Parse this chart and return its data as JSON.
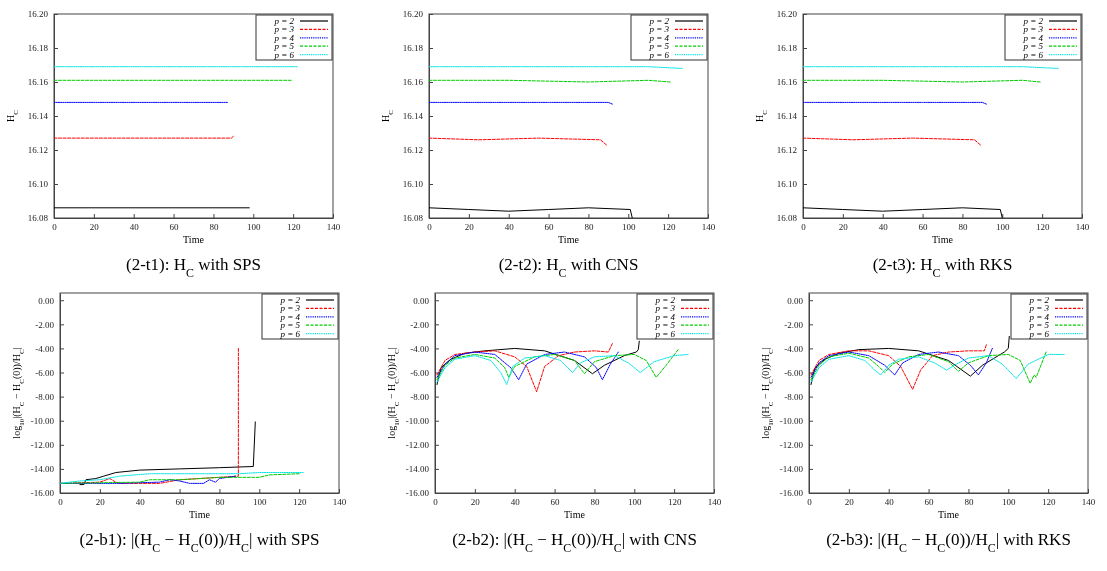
{
  "chart_data": [
    {
      "type": "line",
      "title": "(2-t1): H$_{C}$ with SPS",
      "xlabel": "Time",
      "ylabel": "H$_{C}$",
      "xlim": [
        0,
        140
      ],
      "xticks": [
        0,
        20,
        40,
        60,
        80,
        100,
        120,
        140
      ],
      "ylim": [
        16.08,
        16.2
      ],
      "yticks": [
        {
          "value": 16.08,
          "label": "16.08"
        },
        {
          "value": 16.1,
          "label": "16.10"
        },
        {
          "value": 16.12,
          "label": "16.12"
        },
        {
          "value": 16.14,
          "label": "16.14"
        },
        {
          "value": 16.16,
          "label": "16.16"
        },
        {
          "value": 16.18,
          "label": "16.18"
        },
        {
          "value": 16.2,
          "label": "16.20"
        }
      ],
      "legend": "top right",
      "grid": false,
      "series": [
        {
          "name": "p = 2",
          "color": "#000000",
          "line_style": "solid",
          "x": [
            0,
            98
          ],
          "values": [
            16.086,
            16.086
          ]
        },
        {
          "name": "p = 3",
          "color": "#ff0000",
          "line_style": "dashed",
          "x": [
            0,
            89,
            90
          ],
          "values": [
            16.127,
            16.127,
            16.128
          ]
        },
        {
          "name": "p = 4",
          "color": "#0000ff",
          "line_style": "dotted",
          "x": [
            0,
            87
          ],
          "values": [
            16.148,
            16.148
          ]
        },
        {
          "name": "p = 5",
          "color": "#00cc00",
          "line_style": "dashed",
          "x": [
            0,
            119
          ],
          "values": [
            16.161,
            16.161
          ]
        },
        {
          "name": "p = 6",
          "color": "#00e5e5",
          "line_style": "dotted",
          "x": [
            0,
            122
          ],
          "values": [
            16.169,
            16.169
          ]
        }
      ]
    },
    {
      "type": "line",
      "title": "(2-t2): H$_{C}$ with CNS",
      "xlabel": "Time",
      "ylabel": "H$_{C}$",
      "xlim": [
        0,
        140
      ],
      "xticks": [
        0,
        20,
        40,
        60,
        80,
        100,
        120,
        140
      ],
      "ylim": [
        16.08,
        16.2
      ],
      "yticks": [
        {
          "value": 16.08,
          "label": "16.08"
        },
        {
          "value": 16.1,
          "label": "16.10"
        },
        {
          "value": 16.12,
          "label": "16.12"
        },
        {
          "value": 16.14,
          "label": "16.14"
        },
        {
          "value": 16.16,
          "label": "16.16"
        },
        {
          "value": 16.18,
          "label": "16.18"
        },
        {
          "value": 16.2,
          "label": "16.20"
        }
      ],
      "legend": "top right",
      "grid": false,
      "series": [
        {
          "name": "p = 2",
          "color": "#000000",
          "line_style": "solid",
          "x": [
            0,
            20,
            40,
            60,
            80,
            101,
            102
          ],
          "values": [
            16.086,
            16.085,
            16.084,
            16.085,
            16.086,
            16.085,
            16.08
          ]
        },
        {
          "name": "p = 3",
          "color": "#ff0000",
          "line_style": "dashed",
          "x": [
            0,
            25,
            55,
            86,
            89
          ],
          "values": [
            16.127,
            16.126,
            16.127,
            16.126,
            16.123
          ]
        },
        {
          "name": "p = 4",
          "color": "#0000ff",
          "line_style": "dotted",
          "x": [
            0,
            30,
            60,
            90,
            92
          ],
          "values": [
            16.148,
            16.148,
            16.148,
            16.148,
            16.147
          ]
        },
        {
          "name": "p = 5",
          "color": "#00cc00",
          "line_style": "dashed",
          "x": [
            0,
            40,
            80,
            110,
            121
          ],
          "values": [
            16.161,
            16.161,
            16.16,
            16.161,
            16.16
          ]
        },
        {
          "name": "p = 6",
          "color": "#00e5e5",
          "line_style": "dotted",
          "x": [
            0,
            60,
            110,
            127
          ],
          "values": [
            16.169,
            16.169,
            16.169,
            16.168
          ]
        }
      ]
    },
    {
      "type": "line",
      "title": "(2-t3): H$_{C}$ with RKS",
      "xlabel": "Time",
      "ylabel": "H$_{C}$",
      "xlim": [
        0,
        140
      ],
      "xticks": [
        0,
        20,
        40,
        60,
        80,
        100,
        120,
        140
      ],
      "ylim": [
        16.08,
        16.2
      ],
      "yticks": [
        {
          "value": 16.08,
          "label": "16.08"
        },
        {
          "value": 16.1,
          "label": "16.10"
        },
        {
          "value": 16.12,
          "label": "16.12"
        },
        {
          "value": 16.14,
          "label": "16.14"
        },
        {
          "value": 16.16,
          "label": "16.16"
        },
        {
          "value": 16.18,
          "label": "16.18"
        },
        {
          "value": 16.2,
          "label": "16.20"
        }
      ],
      "legend": "top right",
      "grid": false,
      "series": [
        {
          "name": "p = 2",
          "color": "#000000",
          "line_style": "solid",
          "x": [
            0,
            20,
            40,
            60,
            80,
            99,
            100
          ],
          "values": [
            16.086,
            16.085,
            16.084,
            16.085,
            16.086,
            16.085,
            16.08
          ]
        },
        {
          "name": "p = 3",
          "color": "#ff0000",
          "line_style": "dashed",
          "x": [
            0,
            25,
            55,
            86,
            89
          ],
          "values": [
            16.127,
            16.126,
            16.127,
            16.126,
            16.123
          ]
        },
        {
          "name": "p = 4",
          "color": "#0000ff",
          "line_style": "dotted",
          "x": [
            0,
            30,
            60,
            90,
            92
          ],
          "values": [
            16.148,
            16.148,
            16.148,
            16.148,
            16.147
          ]
        },
        {
          "name": "p = 5",
          "color": "#00cc00",
          "line_style": "dashed",
          "x": [
            0,
            40,
            80,
            110,
            119
          ],
          "values": [
            16.161,
            16.161,
            16.16,
            16.161,
            16.16
          ]
        },
        {
          "name": "p = 6",
          "color": "#00e5e5",
          "line_style": "dotted",
          "x": [
            0,
            60,
            110,
            128
          ],
          "values": [
            16.169,
            16.169,
            16.169,
            16.168
          ]
        }
      ]
    },
    {
      "type": "line",
      "title": "(2-b1): |(H$_{C}$ − H$_{C}$(0))/H$_{C}$| with SPS",
      "xlabel": "Time",
      "ylabel": "log$_{10}$|(H$_{C}$ − H$_{C}$(0))/H$_{C}$|",
      "xlim": [
        0,
        140
      ],
      "xticks": [
        0,
        20,
        40,
        60,
        80,
        100,
        120,
        140
      ],
      "ylim": [
        -16,
        0.6
      ],
      "yticks": [
        {
          "value": -16,
          "label": "-16.00"
        },
        {
          "value": -14,
          "label": "-14.00"
        },
        {
          "value": -12,
          "label": "-12.00"
        },
        {
          "value": -10,
          "label": "-10.00"
        },
        {
          "value": -8,
          "label": "-8.00"
        },
        {
          "value": -6,
          "label": "-6.00"
        },
        {
          "value": -4,
          "label": "-4.00"
        },
        {
          "value": -2,
          "label": "-2.00"
        },
        {
          "value": 0,
          "label": "0.00"
        }
      ],
      "legend": "top right",
      "grid": false,
      "series": [
        {
          "name": "p = 2",
          "color": "#000000",
          "line_style": "solid",
          "x": [
            10,
            12,
            13,
            18,
            22,
            28,
            40,
            60,
            80,
            97,
            98
          ],
          "values": [
            -15.3,
            -15.3,
            -14.9,
            -14.8,
            -14.6,
            -14.3,
            -14.1,
            -14.0,
            -13.9,
            -13.8,
            -10.1
          ]
        },
        {
          "name": "p = 3",
          "color": "#ff0000",
          "line_style": "dashed",
          "x": [
            0,
            20,
            25,
            28,
            30,
            50,
            60,
            80,
            89.5,
            89.5
          ],
          "values": [
            -15.2,
            -15.1,
            -14.8,
            -15.1,
            -15.2,
            -15.2,
            -14.9,
            -14.7,
            -14.6,
            -4.0
          ]
        },
        {
          "name": "p = 4",
          "color": "#0000ff",
          "line_style": "dotted",
          "x": [
            0,
            30,
            50,
            55,
            60,
            65,
            72,
            75,
            78,
            80,
            88
          ],
          "values": [
            -15.2,
            -15.2,
            -15.1,
            -14.9,
            -15.0,
            -15.2,
            -15.2,
            -14.9,
            -15.1,
            -14.8,
            -14.6
          ]
        },
        {
          "name": "p = 5",
          "color": "#00cc00",
          "line_style": "dashed",
          "x": [
            0,
            40,
            45,
            60,
            80,
            100,
            105,
            120
          ],
          "values": [
            -15.2,
            -15.1,
            -14.9,
            -14.9,
            -14.7,
            -14.7,
            -14.5,
            -14.4
          ]
        },
        {
          "name": "p = 6",
          "color": "#00e5e5",
          "line_style": "dotted",
          "x": [
            0,
            10,
            20,
            30,
            45,
            70,
            90,
            100,
            122
          ],
          "values": [
            -15.2,
            -15.0,
            -14.9,
            -14.6,
            -14.4,
            -14.4,
            -14.4,
            -14.3,
            -14.3
          ]
        }
      ]
    },
    {
      "type": "line",
      "title": "(2-b2): |(H$_{C}$ − H$_{C}$(0))/H$_{C}$| with CNS",
      "xlabel": "Time",
      "ylabel": "log$_{10}$|(H$_{C}$ − H$_{C}$(0))/H$_{C}$|",
      "xlim": [
        0,
        140
      ],
      "xticks": [
        0,
        20,
        40,
        60,
        80,
        100,
        120,
        140
      ],
      "ylim": [
        -16,
        0.6
      ],
      "yticks": [
        {
          "value": -16,
          "label": "-16.00"
        },
        {
          "value": -14,
          "label": "-14.00"
        },
        {
          "value": -12,
          "label": "-12.00"
        },
        {
          "value": -10,
          "label": "-10.00"
        },
        {
          "value": -8,
          "label": "-8.00"
        },
        {
          "value": -6,
          "label": "-6.00"
        },
        {
          "value": -4,
          "label": "-4.00"
        },
        {
          "value": -2,
          "label": "-2.00"
        },
        {
          "value": 0,
          "label": "0.00"
        }
      ],
      "legend": "top right",
      "grid": false,
      "series": [
        {
          "name": "p = 2",
          "color": "#000000",
          "line_style": "solid",
          "x": [
            1,
            3,
            8,
            15,
            25,
            40,
            55,
            70,
            79,
            85,
            95,
            101,
            102,
            102.5
          ],
          "values": [
            -7.0,
            -5.6,
            -4.9,
            -4.4,
            -4.2,
            -4.0,
            -4.2,
            -5.0,
            -6.1,
            -5.4,
            -4.6,
            -4.3,
            -4.1,
            -3.4
          ]
        },
        {
          "name": "p = 3",
          "color": "#ff0000",
          "line_style": "dashed",
          "x": [
            1,
            5,
            10,
            20,
            30,
            40,
            46,
            51,
            55,
            62,
            70,
            80,
            87,
            89
          ],
          "values": [
            -6.2,
            -5.0,
            -4.5,
            -4.3,
            -4.2,
            -4.7,
            -5.5,
            -7.6,
            -5.5,
            -4.6,
            -4.3,
            -4.2,
            -4.3,
            -3.6
          ]
        },
        {
          "name": "p = 4",
          "color": "#0000ff",
          "line_style": "dotted",
          "x": [
            1,
            5,
            10,
            20,
            30,
            38,
            42,
            46,
            55,
            65,
            75,
            81,
            84,
            88,
            92
          ],
          "values": [
            -6.4,
            -5.3,
            -4.6,
            -4.3,
            -4.5,
            -5.6,
            -6.6,
            -5.3,
            -4.5,
            -4.3,
            -4.7,
            -5.6,
            -6.6,
            -5.3,
            -4.3
          ]
        },
        {
          "name": "p = 5",
          "color": "#00cc00",
          "line_style": "dashed",
          "x": [
            1,
            5,
            10,
            20,
            30,
            35,
            37,
            40,
            50,
            60,
            70,
            75,
            80,
            90,
            100,
            106,
            111,
            116,
            122
          ],
          "values": [
            -6.6,
            -5.4,
            -4.8,
            -4.5,
            -4.8,
            -5.6,
            -6.4,
            -5.5,
            -4.7,
            -4.5,
            -5.0,
            -6.1,
            -5.1,
            -4.6,
            -4.5,
            -5.0,
            -6.4,
            -5.4,
            -4.1
          ]
        },
        {
          "name": "p = 6",
          "color": "#00e5e5",
          "line_style": "dotted",
          "x": [
            1,
            5,
            10,
            20,
            28,
            33,
            36,
            39,
            45,
            55,
            63,
            69,
            73,
            80,
            90,
            97,
            103,
            110,
            120,
            127
          ],
          "values": [
            -6.8,
            -5.6,
            -4.9,
            -4.6,
            -5.0,
            -6.0,
            -7.0,
            -5.5,
            -4.8,
            -4.6,
            -5.0,
            -6.0,
            -5.2,
            -4.7,
            -4.6,
            -5.2,
            -6.0,
            -5.1,
            -4.6,
            -4.5
          ]
        }
      ]
    },
    {
      "type": "line",
      "title": "(2-b3): |(H$_{C}$ − H$_{C}$(0))/H$_{C}$| with RKS",
      "xlabel": "Time",
      "ylabel": "log$_{10}$|(H$_{C}$ − H$_{C}$(0))/H$_{C}$|",
      "xlim": [
        0,
        140
      ],
      "xticks": [
        0,
        20,
        40,
        60,
        80,
        100,
        120,
        140
      ],
      "ylim": [
        -16,
        0.6
      ],
      "yticks": [
        {
          "value": -16,
          "label": "-16.00"
        },
        {
          "value": -14,
          "label": "-14.00"
        },
        {
          "value": -12,
          "label": "-12.00"
        },
        {
          "value": -10,
          "label": "-10.00"
        },
        {
          "value": -8,
          "label": "-8.00"
        },
        {
          "value": -6,
          "label": "-6.00"
        },
        {
          "value": -4,
          "label": "-4.00"
        },
        {
          "value": -2,
          "label": "-2.00"
        },
        {
          "value": 0,
          "label": "0.00"
        }
      ],
      "legend": "top right",
      "grid": false,
      "series": [
        {
          "name": "p = 2",
          "color": "#000000",
          "line_style": "solid",
          "x": [
            1,
            3,
            8,
            15,
            25,
            40,
            55,
            70,
            81,
            87,
            95,
            98,
            100,
            100.5
          ],
          "values": [
            -7.0,
            -5.6,
            -4.9,
            -4.4,
            -4.1,
            -4.0,
            -4.2,
            -5.0,
            -6.3,
            -5.4,
            -4.6,
            -4.3,
            -4.0,
            -3.0
          ]
        },
        {
          "name": "p = 3",
          "color": "#ff0000",
          "line_style": "dashed",
          "x": [
            1,
            5,
            10,
            20,
            30,
            40,
            46,
            52,
            56,
            62,
            70,
            80,
            88,
            89
          ],
          "values": [
            -6.2,
            -5.0,
            -4.5,
            -4.2,
            -4.2,
            -4.6,
            -5.5,
            -7.4,
            -5.8,
            -4.6,
            -4.3,
            -4.2,
            -4.2,
            -3.7
          ]
        },
        {
          "name": "p = 4",
          "color": "#0000ff",
          "line_style": "dotted",
          "x": [
            1,
            5,
            10,
            20,
            30,
            38,
            43,
            47,
            55,
            65,
            75,
            81,
            85,
            89,
            92
          ],
          "values": [
            -6.4,
            -5.2,
            -4.6,
            -4.3,
            -4.6,
            -5.4,
            -6.2,
            -5.2,
            -4.5,
            -4.3,
            -4.6,
            -5.4,
            -6.2,
            -5.2,
            -4.0
          ]
        },
        {
          "name": "p = 5",
          "color": "#00cc00",
          "line_style": "dashed",
          "x": [
            1,
            5,
            10,
            20,
            30,
            35,
            38,
            42,
            50,
            60,
            70,
            75,
            80,
            90,
            100,
            106,
            111,
            113,
            114,
            119
          ],
          "values": [
            -6.6,
            -5.4,
            -4.7,
            -4.4,
            -4.8,
            -5.5,
            -6.0,
            -5.3,
            -4.7,
            -4.5,
            -5.1,
            -5.9,
            -5.2,
            -4.6,
            -4.5,
            -5.0,
            -6.9,
            -6.2,
            -6.4,
            -4.3
          ]
        },
        {
          "name": "p = 6",
          "color": "#00e5e5",
          "line_style": "dotted",
          "x": [
            1,
            5,
            10,
            20,
            28,
            33,
            36,
            40,
            45,
            55,
            63,
            69,
            74,
            80,
            90,
            97,
            104,
            110,
            120,
            128
          ],
          "values": [
            -6.8,
            -5.6,
            -4.9,
            -4.6,
            -5.0,
            -5.8,
            -6.2,
            -5.4,
            -4.9,
            -4.7,
            -5.2,
            -5.8,
            -5.3,
            -4.8,
            -4.6,
            -5.3,
            -6.5,
            -5.3,
            -4.5,
            -4.5
          ]
        }
      ]
    }
  ]
}
